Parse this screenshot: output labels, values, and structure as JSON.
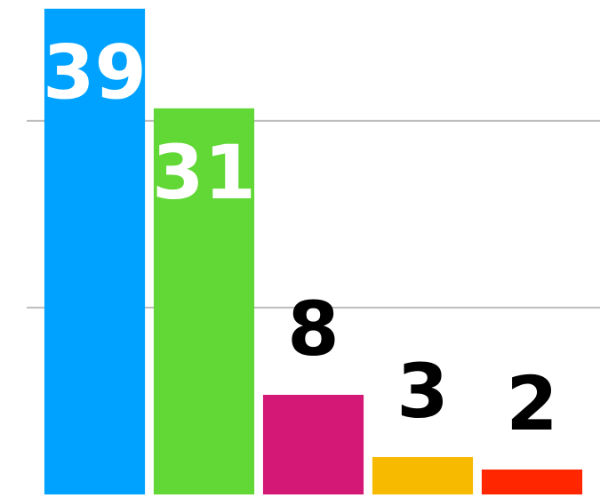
{
  "chart_data": {
    "type": "bar",
    "values": [
      39,
      31,
      8,
      3,
      2
    ],
    "colors": [
      "#00a2ff",
      "#61d836",
      "#d31876",
      "#f8ba00",
      "#ff2600"
    ],
    "ylim": [
      0,
      39.7
    ],
    "yticks": [
      15,
      30
    ],
    "grid": true
  }
}
